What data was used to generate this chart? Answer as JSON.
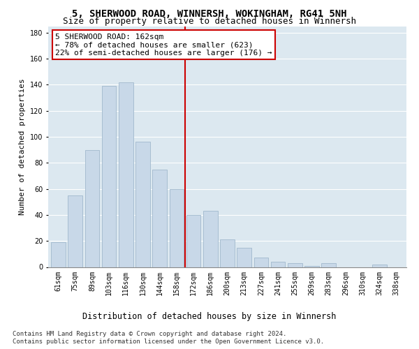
{
  "title1": "5, SHERWOOD ROAD, WINNERSH, WOKINGHAM, RG41 5NH",
  "title2": "Size of property relative to detached houses in Winnersh",
  "xlabel": "Distribution of detached houses by size in Winnersh",
  "ylabel": "Number of detached properties",
  "categories": [
    "61sqm",
    "75sqm",
    "89sqm",
    "103sqm",
    "116sqm",
    "130sqm",
    "144sqm",
    "158sqm",
    "172sqm",
    "186sqm",
    "200sqm",
    "213sqm",
    "227sqm",
    "241sqm",
    "255sqm",
    "269sqm",
    "283sqm",
    "296sqm",
    "310sqm",
    "324sqm",
    "338sqm"
  ],
  "values": [
    19,
    55,
    90,
    139,
    142,
    96,
    75,
    60,
    40,
    43,
    21,
    15,
    7,
    4,
    3,
    1,
    3,
    0,
    0,
    2,
    0
  ],
  "bar_color": "#c8d8e8",
  "bar_edge_color": "#a0b8cc",
  "vline_color": "#cc0000",
  "annotation_text": "5 SHERWOOD ROAD: 162sqm\n← 78% of detached houses are smaller (623)\n22% of semi-detached houses are larger (176) →",
  "annotation_box_color": "#ffffff",
  "annotation_box_edge": "#cc0000",
  "ylim": [
    0,
    185
  ],
  "yticks": [
    0,
    20,
    40,
    60,
    80,
    100,
    120,
    140,
    160,
    180
  ],
  "plot_bg_color": "#dce8f0",
  "fig_bg_color": "#ffffff",
  "grid_color": "#ffffff",
  "footer1": "Contains HM Land Registry data © Crown copyright and database right 2024.",
  "footer2": "Contains public sector information licensed under the Open Government Licence v3.0.",
  "title1_fontsize": 10,
  "title2_fontsize": 9,
  "xlabel_fontsize": 8.5,
  "ylabel_fontsize": 8,
  "tick_fontsize": 7,
  "annotation_fontsize": 8,
  "footer_fontsize": 6.5
}
